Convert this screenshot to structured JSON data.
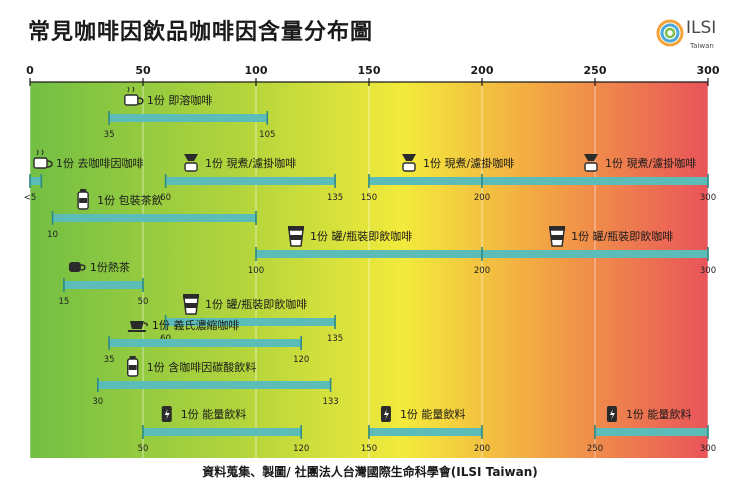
{
  "title": "常見咖啡因飲品咖啡因含量分布圖",
  "logo": {
    "text": "ILSI",
    "sub": "Taiwan"
  },
  "footer": "資料蒐集、製圖/ 社團法人台灣國際生命科學會(ILSI Taiwan)",
  "colors": {
    "bar": "#5bbcb8",
    "green": "#6ebe45",
    "yellow": "#f6eb3c",
    "red": "#e9545a"
  },
  "chart_data": {
    "type": "range",
    "title": "常見咖啡因飲品咖啡因含量分布圖",
    "xlim": [
      0,
      300
    ],
    "xticks": [
      "0",
      "50",
      "100",
      "150",
      "200",
      "250",
      "300"
    ],
    "rows": [
      {
        "ranges": [
          {
            "label": "1份 即溶咖啡",
            "icon": "instant-coffee-icon",
            "min": 35,
            "max": 105,
            "min_label": "35",
            "max_label": "105",
            "marks": []
          }
        ]
      },
      {
        "ranges": [
          {
            "label": "1份 去咖啡因咖啡",
            "icon": "coffee-cup-icon",
            "min": 0,
            "max": 5,
            "min_label": "<5",
            "max_label": "",
            "marks": []
          },
          {
            "label": "1份 現煮/濾掛咖啡",
            "icon": "drip-coffee-icon",
            "min": 60,
            "max": 135,
            "min_label": "60",
            "max_label": "135",
            "marks": []
          },
          {
            "label": "1份 現煮/濾掛咖啡",
            "icon": "drip-coffee-icon",
            "min": 150,
            "max": 300,
            "min_label": "150",
            "max_label": "300",
            "marks": [
              {
                "value": 200,
                "label": "200"
              }
            ]
          },
          {
            "label": "1份 現煮/濾掛咖啡",
            "icon": "drip-coffee-icon",
            "min": 150,
            "max": 300,
            "min_label": "",
            "max_label": "",
            "label_only_at": 250,
            "marks": []
          }
        ]
      },
      {
        "ranges": [
          {
            "label": "1份 包裝茶飲",
            "icon": "bottled-tea-icon",
            "min": 10,
            "max": 100,
            "min_label": "10",
            "max_label": "",
            "marks": []
          }
        ]
      },
      {
        "ranges": [
          {
            "label": "1份 罐/瓶裝即飲咖啡",
            "icon": "takeaway-cup-icon",
            "min": 100,
            "max": 300,
            "min_label": "100",
            "max_label": "300",
            "marks": [
              {
                "value": 200,
                "label": "200"
              }
            ]
          },
          {
            "label": "1份 罐/瓶裝即飲咖啡",
            "icon": "takeaway-cup-icon",
            "min": 100,
            "max": 300,
            "min_label": "",
            "max_label": "",
            "label_only_at": 235,
            "marks": []
          }
        ]
      },
      {
        "ranges": [
          {
            "label": "1份熱茶",
            "icon": "tea-cup-icon",
            "min": 15,
            "max": 50,
            "min_label": "15",
            "max_label": "50",
            "marks": []
          }
        ]
      },
      {
        "ranges": [
          {
            "label": "1份 罐/瓶裝即飲咖啡",
            "icon": "takeaway-cup-icon",
            "min": 60,
            "max": 135,
            "min_label": "60",
            "max_label": "135",
            "marks": []
          }
        ]
      },
      {
        "ranges": [
          {
            "label": "1份 義氏濃縮咖啡",
            "icon": "espresso-icon",
            "min": 35,
            "max": 120,
            "min_label": "35",
            "max_label": "120",
            "marks": []
          }
        ]
      },
      {
        "ranges": [
          {
            "label": "1份 含咖啡因碳酸飲料",
            "icon": "soda-can-icon",
            "min": 30,
            "max": 133,
            "min_label": "30",
            "max_label": "133",
            "marks": []
          }
        ]
      },
      {
        "ranges": [
          {
            "label": "1份 能量飲料",
            "icon": "energy-drink-icon",
            "min": 50,
            "max": 120,
            "min_label": "50",
            "max_label": "120",
            "marks": []
          },
          {
            "label": "1份 能量飲料",
            "icon": "energy-drink-icon",
            "min": 150,
            "max": 200,
            "min_label": "150",
            "max_label": "200",
            "marks": []
          },
          {
            "label": "1份 能量飲料",
            "icon": "energy-drink-icon",
            "min": 250,
            "max": 300,
            "min_label": "250",
            "max_label": "300",
            "marks": []
          }
        ]
      }
    ]
  }
}
